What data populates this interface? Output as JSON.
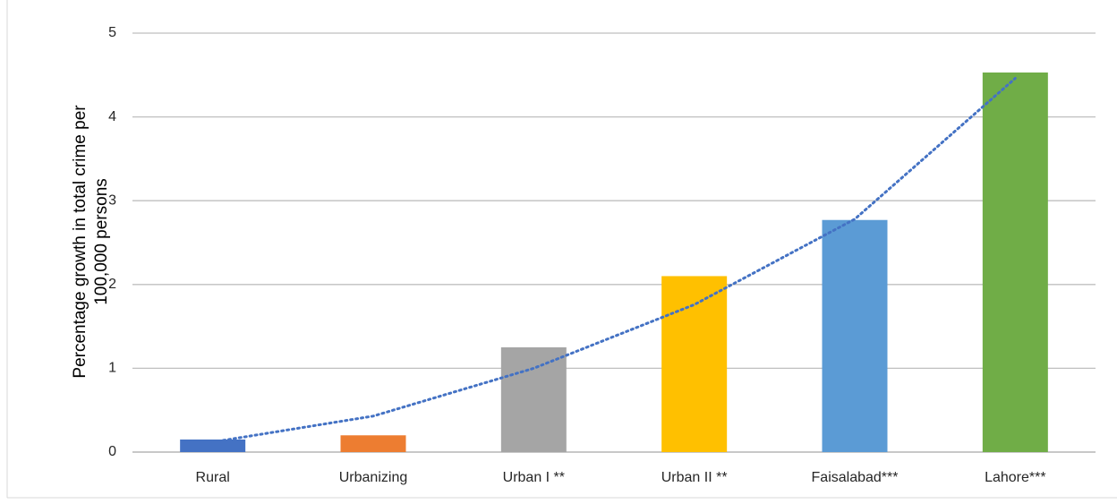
{
  "chart_data": {
    "type": "bar",
    "ylabel": [
      "Percentage growth in total crime per",
      "100,000 persons"
    ],
    "categories": [
      "Rural",
      "Urbanizing",
      "Urban I **",
      "Urban II **",
      "Faisalabad***",
      "Lahore***"
    ],
    "values": [
      0.15,
      0.2,
      1.25,
      2.1,
      2.77,
      4.53
    ],
    "colors": [
      "#4472c4",
      "#ed7d31",
      "#a5a5a5",
      "#ffc000",
      "#5b9bd5",
      "#70ad47"
    ],
    "trendline": {
      "values": [
        0.12,
        0.43,
        1.0,
        1.76,
        2.78,
        4.46
      ],
      "color": "#4472c4",
      "style": "dotted"
    },
    "ylim": [
      0,
      5
    ],
    "yticks": [
      0,
      1,
      2,
      3,
      4,
      5
    ],
    "grid": true
  }
}
